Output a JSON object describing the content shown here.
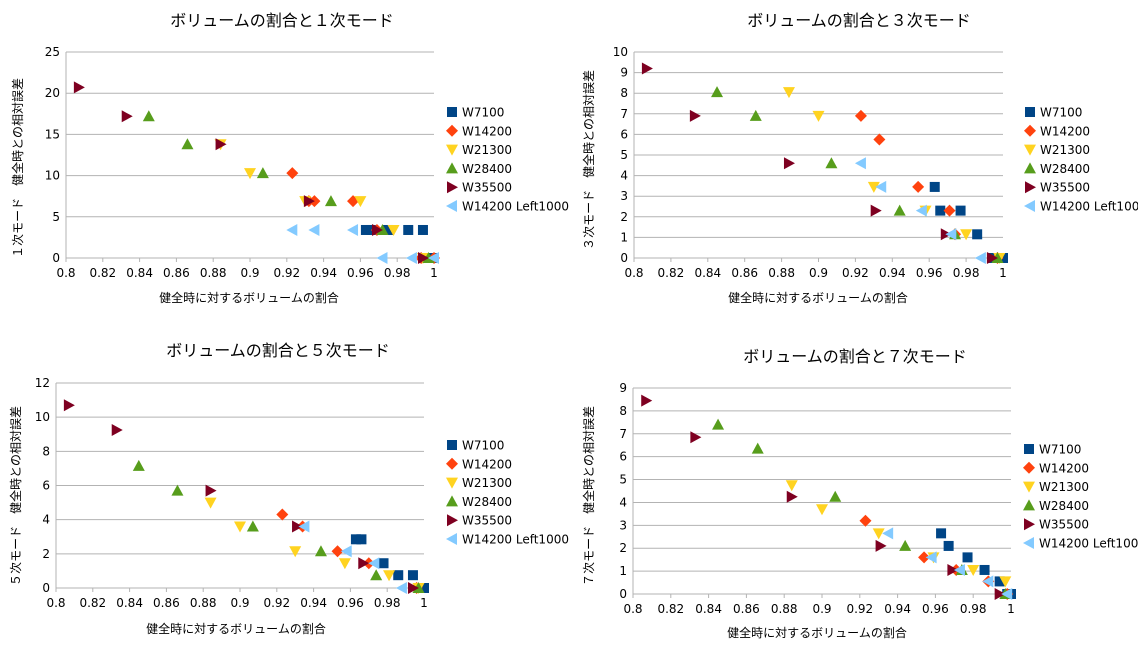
{
  "chart_data": [
    {
      "type": "scatter",
      "title": "ボリュームの割合と１次モード",
      "xlabel": "健全時に対するボリュームの割合",
      "ylabel": "１次モード　健全時との相対誤差",
      "xlim": [
        0.8,
        1
      ],
      "ylim": [
        0,
        25
      ],
      "xticks": [
        "0.8",
        "0.82",
        "0.84",
        "0.86",
        "0.88",
        "0.9",
        "0.92",
        "0.94",
        "0.96",
        "0.98",
        "1"
      ],
      "yticks": [
        "0",
        "5",
        "10",
        "15",
        "20",
        "25"
      ],
      "grid": "horizontal",
      "legend_position": "right",
      "series": [
        {
          "name": "W7100",
          "points": [
            [
              0.963,
              3.4
            ],
            [
              0.966,
              3.4
            ],
            [
              0.975,
              3.4
            ],
            [
              0.986,
              3.4
            ],
            [
              0.994,
              3.4
            ],
            [
              0.998,
              0
            ],
            [
              1,
              0
            ]
          ]
        },
        {
          "name": "W14200",
          "points": [
            [
              0.923,
              10.3
            ],
            [
              0.932,
              6.9
            ],
            [
              0.935,
              6.9
            ],
            [
              0.956,
              6.9
            ],
            [
              0.969,
              3.4
            ],
            [
              0.993,
              0
            ],
            [
              1,
              0
            ]
          ]
        },
        {
          "name": "W21300",
          "points": [
            [
              0.884,
              13.8
            ],
            [
              0.9,
              10.3
            ],
            [
              0.93,
              6.9
            ],
            [
              0.96,
              6.9
            ],
            [
              0.978,
              3.4
            ],
            [
              0.994,
              0
            ]
          ]
        },
        {
          "name": "W28400",
          "points": [
            [
              0.845,
              17.2
            ],
            [
              0.866,
              13.8
            ],
            [
              0.907,
              10.3
            ],
            [
              0.944,
              6.9
            ],
            [
              0.972,
              3.4
            ],
            [
              0.997,
              0
            ]
          ]
        },
        {
          "name": "W35500",
          "points": [
            [
              0.807,
              20.7
            ],
            [
              0.833,
              17.2
            ],
            [
              0.884,
              13.8
            ],
            [
              0.932,
              6.9
            ],
            [
              0.969,
              3.4
            ],
            [
              0.994,
              0
            ]
          ]
        },
        {
          "name": "W14200 Left1000",
          "points": [
            [
              0.923,
              3.4
            ],
            [
              0.935,
              3.4
            ],
            [
              0.956,
              3.4
            ],
            [
              0.972,
              0
            ],
            [
              0.988,
              0
            ],
            [
              1,
              0
            ]
          ]
        }
      ]
    },
    {
      "type": "scatter",
      "title": "ボリュームの割合と３次モード",
      "xlabel": "健全時に対するボリュームの割合",
      "ylabel": "３次モード　健全時との相対誤差",
      "xlim": [
        0.8,
        1
      ],
      "ylim": [
        0,
        10
      ],
      "xticks": [
        "0.8",
        "0.82",
        "0.84",
        "0.86",
        "0.88",
        "0.9",
        "0.92",
        "0.94",
        "0.96",
        "0.98",
        "1"
      ],
      "yticks": [
        "0",
        "1",
        "2",
        "3",
        "4",
        "5",
        "6",
        "7",
        "8",
        "9",
        "10"
      ],
      "grid": "horizontal",
      "legend_position": "right",
      "series": [
        {
          "name": "W7100",
          "points": [
            [
              0.963,
              3.45
            ],
            [
              0.966,
              2.3
            ],
            [
              0.977,
              2.3
            ],
            [
              0.986,
              1.15
            ],
            [
              0.994,
              0
            ],
            [
              0.998,
              0
            ],
            [
              1,
              0
            ]
          ]
        },
        {
          "name": "W14200",
          "points": [
            [
              0.923,
              6.9
            ],
            [
              0.933,
              5.75
            ],
            [
              0.954,
              3.45
            ],
            [
              0.971,
              2.3
            ],
            [
              0.974,
              1.15
            ],
            [
              0.997,
              0
            ]
          ]
        },
        {
          "name": "W21300",
          "points": [
            [
              0.884,
              8.05
            ],
            [
              0.9,
              6.9
            ],
            [
              0.93,
              3.45
            ],
            [
              0.958,
              2.3
            ],
            [
              0.98,
              1.15
            ],
            [
              0.998,
              0
            ]
          ]
        },
        {
          "name": "W28400",
          "points": [
            [
              0.845,
              8.05
            ],
            [
              0.866,
              6.9
            ],
            [
              0.907,
              4.6
            ],
            [
              0.944,
              2.3
            ],
            [
              0.974,
              1.15
            ],
            [
              0.997,
              0
            ]
          ]
        },
        {
          "name": "W35500",
          "points": [
            [
              0.807,
              9.2
            ],
            [
              0.833,
              6.9
            ],
            [
              0.884,
              4.6
            ],
            [
              0.931,
              2.3
            ],
            [
              0.969,
              1.15
            ],
            [
              0.994,
              0
            ]
          ]
        },
        {
          "name": "W14200 Left1000",
          "points": [
            [
              0.923,
              4.6
            ],
            [
              0.934,
              3.45
            ],
            [
              0.956,
              2.3
            ],
            [
              0.972,
              1.15
            ],
            [
              0.988,
              0
            ]
          ]
        }
      ]
    },
    {
      "type": "scatter",
      "title": "ボリュームの割合と５次モード",
      "xlabel": "健全時に対するボリュームの割合",
      "ylabel": "５次モード　健全時との相対誤差",
      "xlim": [
        0.8,
        1
      ],
      "ylim": [
        0,
        12
      ],
      "xticks": [
        "0.8",
        "0.82",
        "0.84",
        "0.86",
        "0.88",
        "0.9",
        "0.92",
        "0.94",
        "0.96",
        "0.98",
        "1"
      ],
      "yticks": [
        "0",
        "2",
        "4",
        "6",
        "8",
        "10",
        "12"
      ],
      "grid": "horizontal",
      "legend_position": "right",
      "series": [
        {
          "name": "W7100",
          "points": [
            [
              0.963,
              2.85
            ],
            [
              0.966,
              2.85
            ],
            [
              0.978,
              1.45
            ],
            [
              0.986,
              0.75
            ],
            [
              0.994,
              0.75
            ],
            [
              0.998,
              0
            ],
            [
              1,
              0
            ]
          ]
        },
        {
          "name": "W14200",
          "points": [
            [
              0.923,
              4.3
            ],
            [
              0.934,
              3.6
            ],
            [
              0.953,
              2.15
            ],
            [
              0.97,
              1.45
            ],
            [
              0.996,
              0
            ]
          ]
        },
        {
          "name": "W21300",
          "points": [
            [
              0.884,
              5
            ],
            [
              0.9,
              3.6
            ],
            [
              0.93,
              2.15
            ],
            [
              0.957,
              1.45
            ],
            [
              0.981,
              0.75
            ],
            [
              0.997,
              0
            ]
          ]
        },
        {
          "name": "W28400",
          "points": [
            [
              0.845,
              7.15
            ],
            [
              0.866,
              5.7
            ],
            [
              0.907,
              3.6
            ],
            [
              0.944,
              2.15
            ],
            [
              0.974,
              0.75
            ],
            [
              0.997,
              0
            ]
          ]
        },
        {
          "name": "W35500",
          "points": [
            [
              0.807,
              10.7
            ],
            [
              0.833,
              9.25
            ],
            [
              0.884,
              5.7
            ],
            [
              0.931,
              3.6
            ],
            [
              0.967,
              1.45
            ],
            [
              0.994,
              0
            ]
          ]
        },
        {
          "name": "W14200 Left1000",
          "points": [
            [
              0.935,
              3.6
            ],
            [
              0.958,
              2.15
            ],
            [
              0.973,
              1.45
            ],
            [
              0.988,
              0
            ]
          ]
        }
      ]
    },
    {
      "type": "scatter",
      "title": "ボリュームの割合と７次モード",
      "xlabel": "健全時に対するボリュームの割合",
      "ylabel": "７次モード　健全時との相対誤差",
      "xlim": [
        0.8,
        1
      ],
      "ylim": [
        0,
        9
      ],
      "xticks": [
        "0.8",
        "0.82",
        "0.84",
        "0.86",
        "0.88",
        "0.9",
        "0.92",
        "0.94",
        "0.96",
        "0.98",
        "1"
      ],
      "yticks": [
        "0",
        "1",
        "2",
        "3",
        "4",
        "5",
        "6",
        "7",
        "8",
        "9"
      ],
      "grid": "horizontal",
      "legend_position": "right",
      "series": [
        {
          "name": "W7100",
          "points": [
            [
              0.963,
              2.65
            ],
            [
              0.967,
              2.1
            ],
            [
              0.977,
              1.6
            ],
            [
              0.986,
              1.05
            ],
            [
              0.994,
              0.55
            ],
            [
              0.998,
              0
            ],
            [
              1,
              0
            ]
          ]
        },
        {
          "name": "W14200",
          "points": [
            [
              0.923,
              3.2
            ],
            [
              0.954,
              1.6
            ],
            [
              0.971,
              1.05
            ],
            [
              0.988,
              0.55
            ],
            [
              0.998,
              0
            ]
          ]
        },
        {
          "name": "W21300",
          "points": [
            [
              0.884,
              4.75
            ],
            [
              0.9,
              3.7
            ],
            [
              0.93,
              2.65
            ],
            [
              0.959,
              1.6
            ],
            [
              0.98,
              1.05
            ],
            [
              0.997,
              0.55
            ]
          ]
        },
        {
          "name": "W28400",
          "points": [
            [
              0.845,
              7.4
            ],
            [
              0.866,
              6.35
            ],
            [
              0.907,
              4.25
            ],
            [
              0.944,
              2.1
            ],
            [
              0.974,
              1.05
            ],
            [
              0.997,
              0
            ]
          ]
        },
        {
          "name": "W35500",
          "points": [
            [
              0.807,
              8.45
            ],
            [
              0.833,
              6.85
            ],
            [
              0.884,
              4.25
            ],
            [
              0.931,
              2.1
            ],
            [
              0.969,
              1.05
            ],
            [
              0.994,
              0
            ]
          ]
        },
        {
          "name": "W14200 Left1000",
          "points": [
            [
              0.935,
              2.65
            ],
            [
              0.958,
              1.6
            ],
            [
              0.973,
              1.05
            ],
            [
              0.988,
              0.55
            ],
            [
              0.998,
              0
            ]
          ]
        }
      ]
    }
  ],
  "colors": {
    "W7100": "#004586",
    "W14200": "#ff420e",
    "W21300": "#ffd320",
    "W28400": "#579d1c",
    "W35500": "#7e0021",
    "W14200 Left1000": "#83caff"
  },
  "markers": {
    "W7100": "square",
    "W14200": "diamond",
    "W21300": "triangle-down",
    "W28400": "triangle-up",
    "W35500": "triangle-right",
    "W14200 Left1000": "triangle-left"
  }
}
